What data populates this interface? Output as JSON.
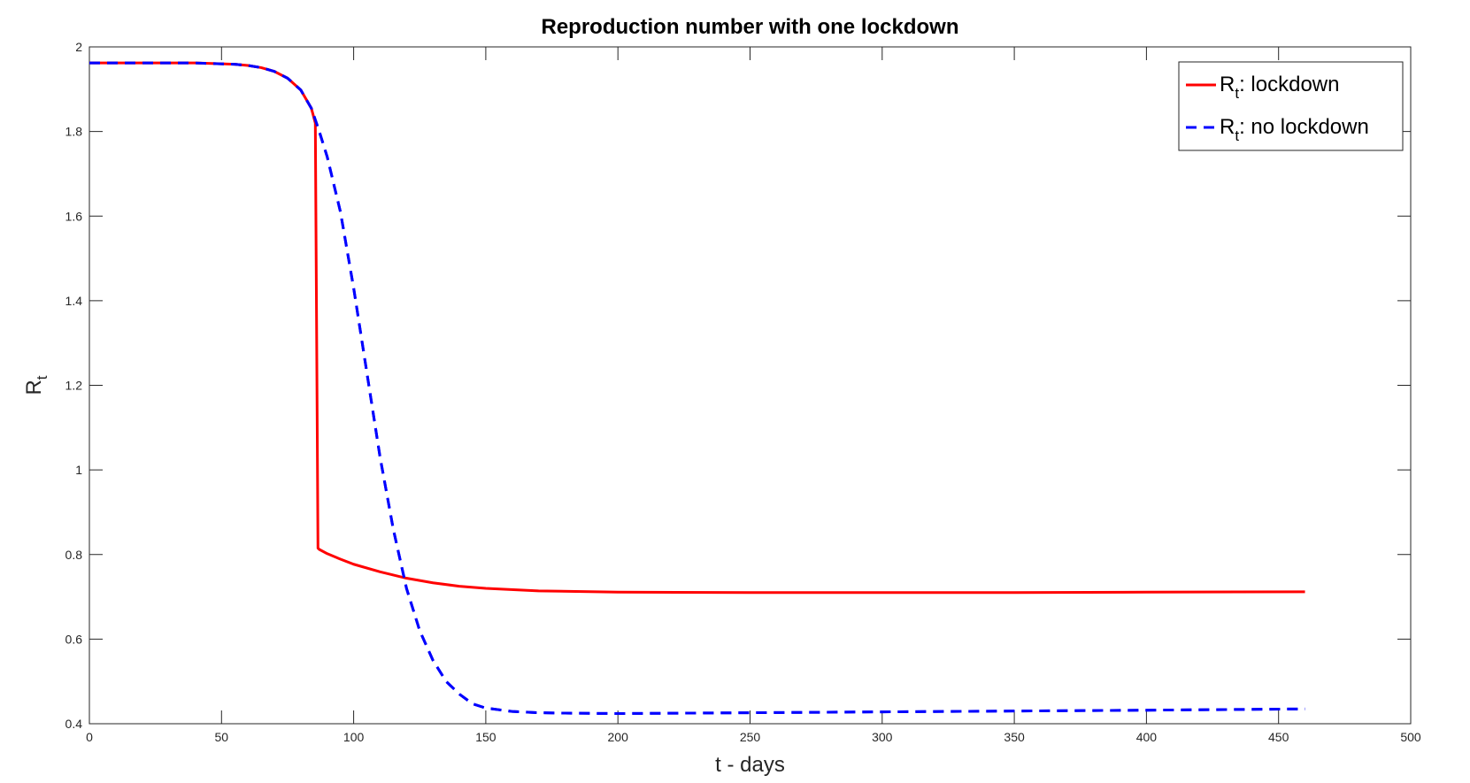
{
  "chart_data": {
    "type": "line",
    "title": "Reproduction number with one lockdown",
    "xlabel": "t - days",
    "ylabel": {
      "main": "R",
      "sub": "t"
    },
    "xlim": [
      0,
      500
    ],
    "ylim": [
      0.4,
      2
    ],
    "xticks": [
      0,
      50,
      100,
      150,
      200,
      250,
      300,
      350,
      400,
      450,
      500
    ],
    "yticks": [
      0.4,
      0.6,
      0.8,
      1,
      1.2,
      1.4,
      1.6,
      1.8,
      2
    ],
    "ytick_labels": [
      "0.4",
      "0.6",
      "0.8",
      "1",
      "1.2",
      "1.4",
      "1.6",
      "1.8",
      "2"
    ],
    "grid": false,
    "legend_position": "top-right",
    "series": [
      {
        "name": "R_t: lockdown",
        "legend_main": "R",
        "legend_sub": "t",
        "legend_rest": ": lockdown",
        "color": "#ff0000",
        "dash": "solid",
        "x": [
          0,
          20,
          40,
          55,
          60,
          65,
          70,
          75,
          80,
          84,
          85.5,
          86.5,
          87,
          90,
          95,
          100,
          110,
          120,
          130,
          140,
          150,
          170,
          200,
          250,
          300,
          350,
          400,
          460
        ],
        "y": [
          1.962,
          1.962,
          1.962,
          1.959,
          1.956,
          1.951,
          1.942,
          1.926,
          1.898,
          1.855,
          1.82,
          0.815,
          0.812,
          0.802,
          0.789,
          0.777,
          0.759,
          0.744,
          0.733,
          0.725,
          0.72,
          0.714,
          0.711,
          0.71,
          0.71,
          0.71,
          0.711,
          0.712
        ]
      },
      {
        "name": "R_t: no lockdown",
        "legend_main": "R",
        "legend_sub": "t",
        "legend_rest": ": no lockdown",
        "color": "#0000ff",
        "dash": "dashed",
        "x": [
          0,
          20,
          40,
          55,
          60,
          65,
          70,
          75,
          80,
          84,
          87,
          90,
          95,
          100,
          105,
          110,
          115,
          120,
          125,
          130,
          135,
          140,
          145,
          150,
          160,
          170,
          180,
          200,
          250,
          300,
          350,
          400,
          460
        ],
        "y": [
          1.962,
          1.962,
          1.962,
          1.959,
          1.956,
          1.951,
          1.942,
          1.926,
          1.898,
          1.855,
          1.8,
          1.74,
          1.61,
          1.43,
          1.23,
          1.03,
          0.86,
          0.72,
          0.62,
          0.55,
          0.5,
          0.47,
          0.447,
          0.437,
          0.429,
          0.426,
          0.425,
          0.424,
          0.426,
          0.428,
          0.43,
          0.432,
          0.435
        ]
      }
    ]
  }
}
